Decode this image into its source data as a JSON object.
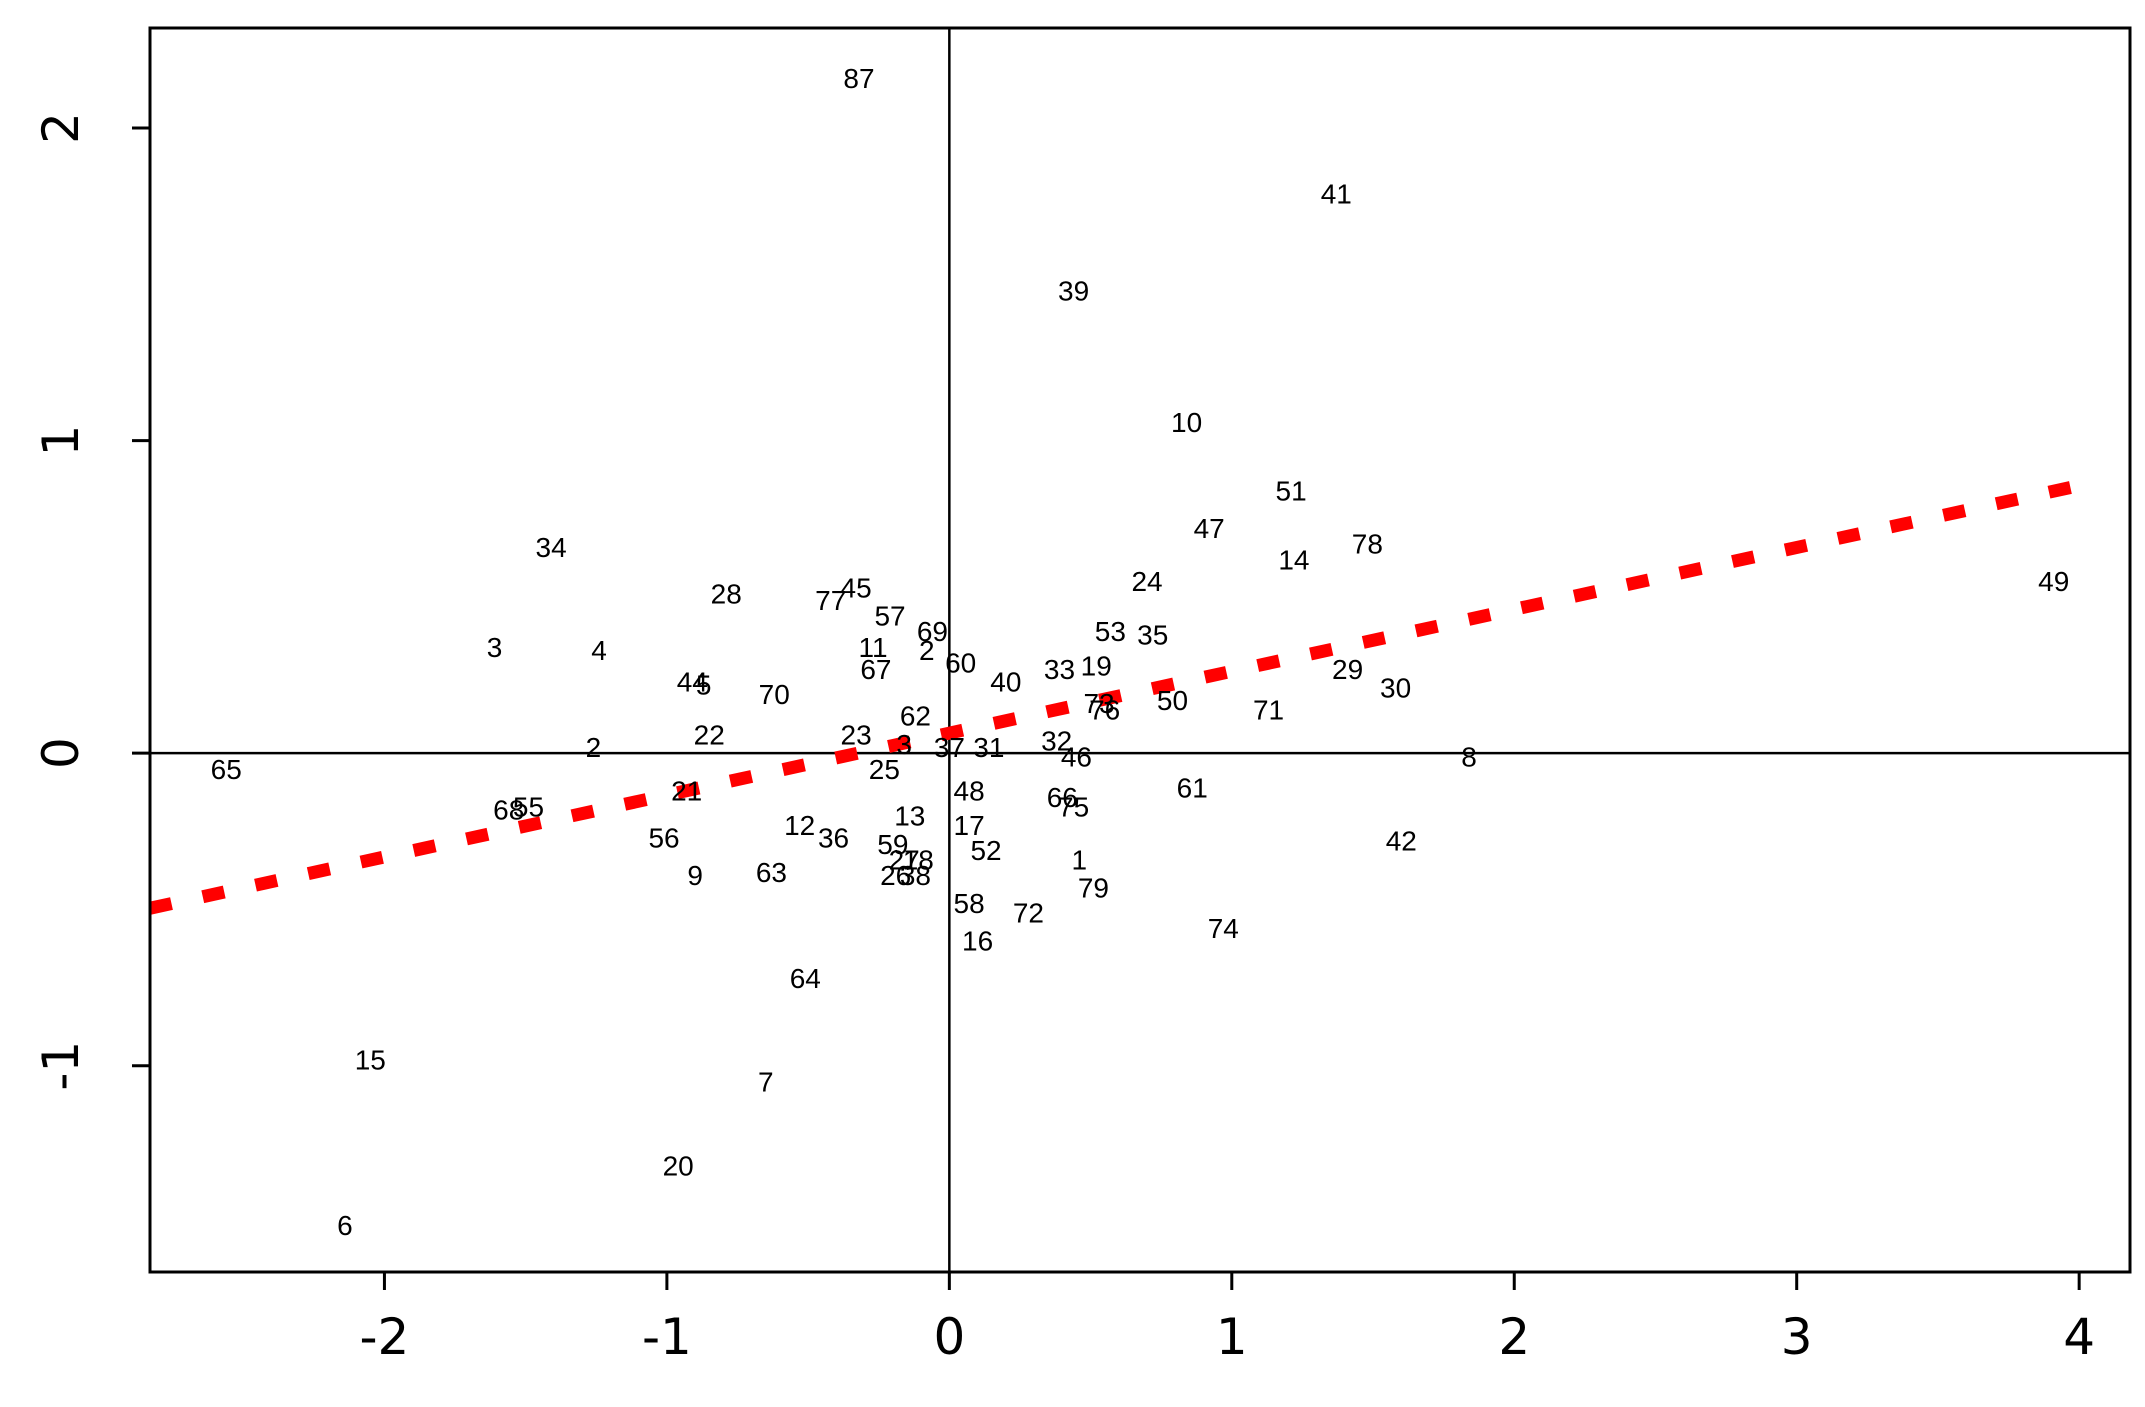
{
  "chart_data": {
    "type": "scatter",
    "title": "",
    "xlabel": "",
    "ylabel": "",
    "xlim": [
      -2.83,
      4.18
    ],
    "ylim": [
      -1.66,
      2.32
    ],
    "x_ticks": [
      -2,
      -1,
      0,
      1,
      2,
      3,
      4
    ],
    "y_ticks": [
      -1,
      0,
      1,
      2
    ],
    "grid": false,
    "reference_lines": {
      "x": 0,
      "y": 0
    },
    "trend_line": {
      "intercept": 0.064,
      "slope": 0.198,
      "color": "#ff0000",
      "style": "dashed"
    },
    "colors": {
      "points": "#000000",
      "axes": "#000000",
      "trend": "#ff0000"
    },
    "points": [
      {
        "label": "87",
        "x": -0.32,
        "y": 2.16
      },
      {
        "label": "41",
        "x": 1.37,
        "y": 1.79
      },
      {
        "label": "39",
        "x": 0.44,
        "y": 1.48
      },
      {
        "label": "10",
        "x": 0.84,
        "y": 1.06
      },
      {
        "label": "51",
        "x": 1.21,
        "y": 0.84
      },
      {
        "label": "47",
        "x": 0.92,
        "y": 0.72
      },
      {
        "label": "78",
        "x": 1.48,
        "y": 0.67
      },
      {
        "label": "34",
        "x": -1.41,
        "y": 0.66
      },
      {
        "label": "14",
        "x": 1.22,
        "y": 0.62
      },
      {
        "label": "24",
        "x": 0.7,
        "y": 0.55
      },
      {
        "label": "49",
        "x": 3.91,
        "y": 0.55
      },
      {
        "label": "45",
        "x": -0.33,
        "y": 0.53
      },
      {
        "label": "28",
        "x": -0.79,
        "y": 0.51
      },
      {
        "label": "77",
        "x": -0.42,
        "y": 0.49
      },
      {
        "label": "57",
        "x": -0.21,
        "y": 0.44
      },
      {
        "label": "69",
        "x": -0.06,
        "y": 0.39
      },
      {
        "label": "53",
        "x": 0.57,
        "y": 0.39
      },
      {
        "label": "35",
        "x": 0.72,
        "y": 0.38
      },
      {
        "label": "3",
        "x": -1.61,
        "y": 0.34
      },
      {
        "label": "11",
        "x": -0.27,
        "y": 0.34
      },
      {
        "label": "4",
        "x": -1.24,
        "y": 0.33
      },
      {
        "label": "2",
        "x": -0.08,
        "y": 0.33
      },
      {
        "label": "60",
        "x": 0.04,
        "y": 0.29
      },
      {
        "label": "33",
        "x": 0.39,
        "y": 0.27
      },
      {
        "label": "19",
        "x": 0.52,
        "y": 0.28
      },
      {
        "label": "29",
        "x": 1.41,
        "y": 0.27
      },
      {
        "label": "67",
        "x": -0.26,
        "y": 0.27
      },
      {
        "label": "40",
        "x": 0.2,
        "y": 0.23
      },
      {
        "label": "44",
        "x": -0.91,
        "y": 0.23
      },
      {
        "label": "5",
        "x": -0.87,
        "y": 0.22
      },
      {
        "label": "30",
        "x": 1.58,
        "y": 0.21
      },
      {
        "label": "70",
        "x": -0.62,
        "y": 0.19
      },
      {
        "label": "50",
        "x": 0.79,
        "y": 0.17
      },
      {
        "label": "73",
        "x": 0.53,
        "y": 0.16
      },
      {
        "label": "71",
        "x": 1.13,
        "y": 0.14
      },
      {
        "label": "76",
        "x": 0.55,
        "y": 0.14
      },
      {
        "label": "62",
        "x": -0.12,
        "y": 0.12
      },
      {
        "label": "22",
        "x": -0.85,
        "y": 0.06
      },
      {
        "label": "23",
        "x": -0.33,
        "y": 0.06
      },
      {
        "label": "32",
        "x": 0.38,
        "y": 0.04
      },
      {
        "label": "3",
        "x": -0.16,
        "y": 0.03
      },
      {
        "label": "37",
        "x": 0.0,
        "y": 0.02
      },
      {
        "label": "31",
        "x": 0.14,
        "y": 0.02
      },
      {
        "label": "2",
        "x": -1.26,
        "y": 0.02
      },
      {
        "label": "46",
        "x": 0.45,
        "y": -0.01
      },
      {
        "label": "8",
        "x": 1.84,
        "y": -0.01
      },
      {
        "label": "25",
        "x": -0.23,
        "y": -0.05
      },
      {
        "label": "65",
        "x": -2.56,
        "y": -0.05
      },
      {
        "label": "21",
        "x": -0.93,
        "y": -0.12
      },
      {
        "label": "48",
        "x": 0.07,
        "y": -0.12
      },
      {
        "label": "61",
        "x": 0.86,
        "y": -0.11
      },
      {
        "label": "66",
        "x": 0.4,
        "y": -0.14
      },
      {
        "label": "75",
        "x": 0.44,
        "y": -0.17
      },
      {
        "label": "68",
        "x": -1.56,
        "y": -0.18
      },
      {
        "label": "55",
        "x": -1.49,
        "y": -0.17
      },
      {
        "label": "13",
        "x": -0.14,
        "y": -0.2
      },
      {
        "label": "12",
        "x": -0.53,
        "y": -0.23
      },
      {
        "label": "17",
        "x": 0.07,
        "y": -0.23
      },
      {
        "label": "36",
        "x": -0.41,
        "y": -0.27
      },
      {
        "label": "56",
        "x": -1.01,
        "y": -0.27
      },
      {
        "label": "42",
        "x": 1.6,
        "y": -0.28
      },
      {
        "label": "59",
        "x": -0.2,
        "y": -0.29
      },
      {
        "label": "52",
        "x": 0.13,
        "y": -0.31
      },
      {
        "label": "27",
        "x": -0.16,
        "y": -0.34
      },
      {
        "label": "18",
        "x": -0.11,
        "y": -0.34
      },
      {
        "label": "1",
        "x": 0.46,
        "y": -0.34
      },
      {
        "label": "26",
        "x": -0.19,
        "y": -0.39
      },
      {
        "label": "38",
        "x": -0.12,
        "y": -0.39
      },
      {
        "label": "9",
        "x": -0.9,
        "y": -0.39
      },
      {
        "label": "63",
        "x": -0.63,
        "y": -0.38
      },
      {
        "label": "79",
        "x": 0.51,
        "y": -0.43
      },
      {
        "label": "58",
        "x": 0.07,
        "y": -0.48
      },
      {
        "label": "72",
        "x": 0.28,
        "y": -0.51
      },
      {
        "label": "74",
        "x": 0.97,
        "y": -0.56
      },
      {
        "label": "16",
        "x": 0.1,
        "y": -0.6
      },
      {
        "label": "64",
        "x": -0.51,
        "y": -0.72
      },
      {
        "label": "15",
        "x": -2.05,
        "y": -0.98
      },
      {
        "label": "7",
        "x": -0.65,
        "y": -1.05
      },
      {
        "label": "20",
        "x": -0.96,
        "y": -1.32
      },
      {
        "label": "6",
        "x": -2.14,
        "y": -1.51
      }
    ]
  }
}
